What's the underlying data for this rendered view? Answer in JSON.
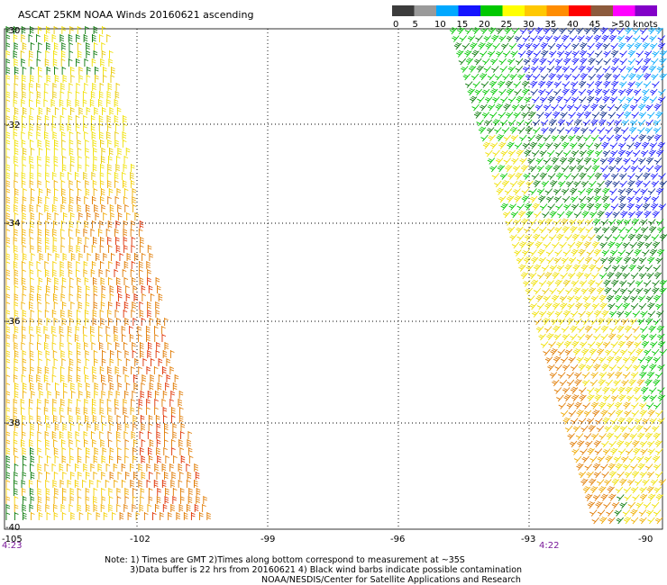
{
  "title": "ASCAT 25KM NOAA Winds 20160621 ascending",
  "legend": {
    "ticks": [
      "0",
      "5",
      "10",
      "15",
      "20",
      "25",
      "30",
      "35",
      "40",
      "45",
      ">50 knots"
    ],
    "colors": [
      "#3c3c3c",
      "#9a9a9a",
      "#00a8ff",
      "#1414ff",
      "#00c800",
      "#ffff00",
      "#ffc800",
      "#ff8c00",
      "#ff0000",
      "#8c5a3c",
      "#ff00ff",
      "#8200c8"
    ]
  },
  "latitudes": [
    "-30",
    "-32",
    "-34",
    "-36",
    "-38",
    "-40"
  ],
  "longitudes": [
    "-105",
    "-102",
    "-99",
    "-96",
    "-93",
    "-90"
  ],
  "pass_times": [
    "4:23",
    "4:22"
  ],
  "notes": {
    "line1": "Note: 1) Times are GMT 2)Times along bottom correspond to measurement at ~35S",
    "line2": "3)Data buffer is 22 hrs from 20160621 4) Black wind barbs indicate possible contamination",
    "line3": "NOAA/NESDIS/Center for Satellite Applications and Research"
  }
}
